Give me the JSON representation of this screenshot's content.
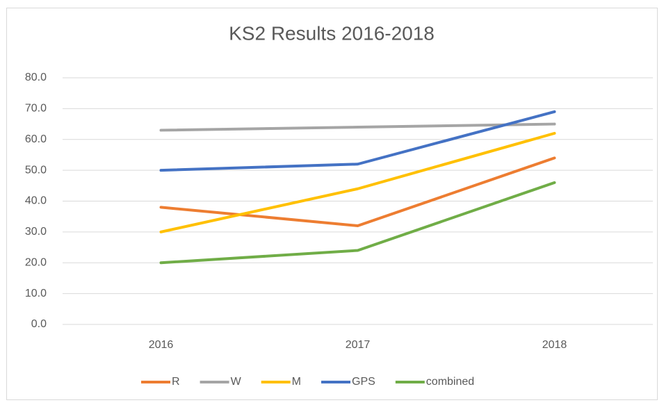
{
  "chart_data": {
    "type": "line",
    "title": "KS2 Results 2016-2018",
    "categories": [
      "2016",
      "2017",
      "2018"
    ],
    "series": [
      {
        "name": "R",
        "color": "#ed7d31",
        "values": [
          38,
          32,
          54
        ]
      },
      {
        "name": "W",
        "color": "#a5a5a5",
        "values": [
          63,
          64,
          65
        ]
      },
      {
        "name": "M",
        "color": "#ffc000",
        "values": [
          30,
          44,
          62
        ]
      },
      {
        "name": "GPS",
        "color": "#4472c4",
        "values": [
          50,
          52,
          69
        ]
      },
      {
        "name": "combined",
        "color": "#70ad47",
        "values": [
          20,
          24,
          46
        ]
      }
    ],
    "ylim": [
      0,
      80
    ],
    "yticks": [
      {
        "value": 0,
        "label": "0.0"
      },
      {
        "value": 10,
        "label": "10.0"
      },
      {
        "value": 20,
        "label": "20.0"
      },
      {
        "value": 30,
        "label": "30.0"
      },
      {
        "value": 40,
        "label": "40.0"
      },
      {
        "value": 50,
        "label": "50.0"
      },
      {
        "value": 60,
        "label": "60.0"
      },
      {
        "value": 70,
        "label": "70.0"
      },
      {
        "value": 80,
        "label": "80.0"
      }
    ],
    "grid": true,
    "legend": "bottom"
  }
}
